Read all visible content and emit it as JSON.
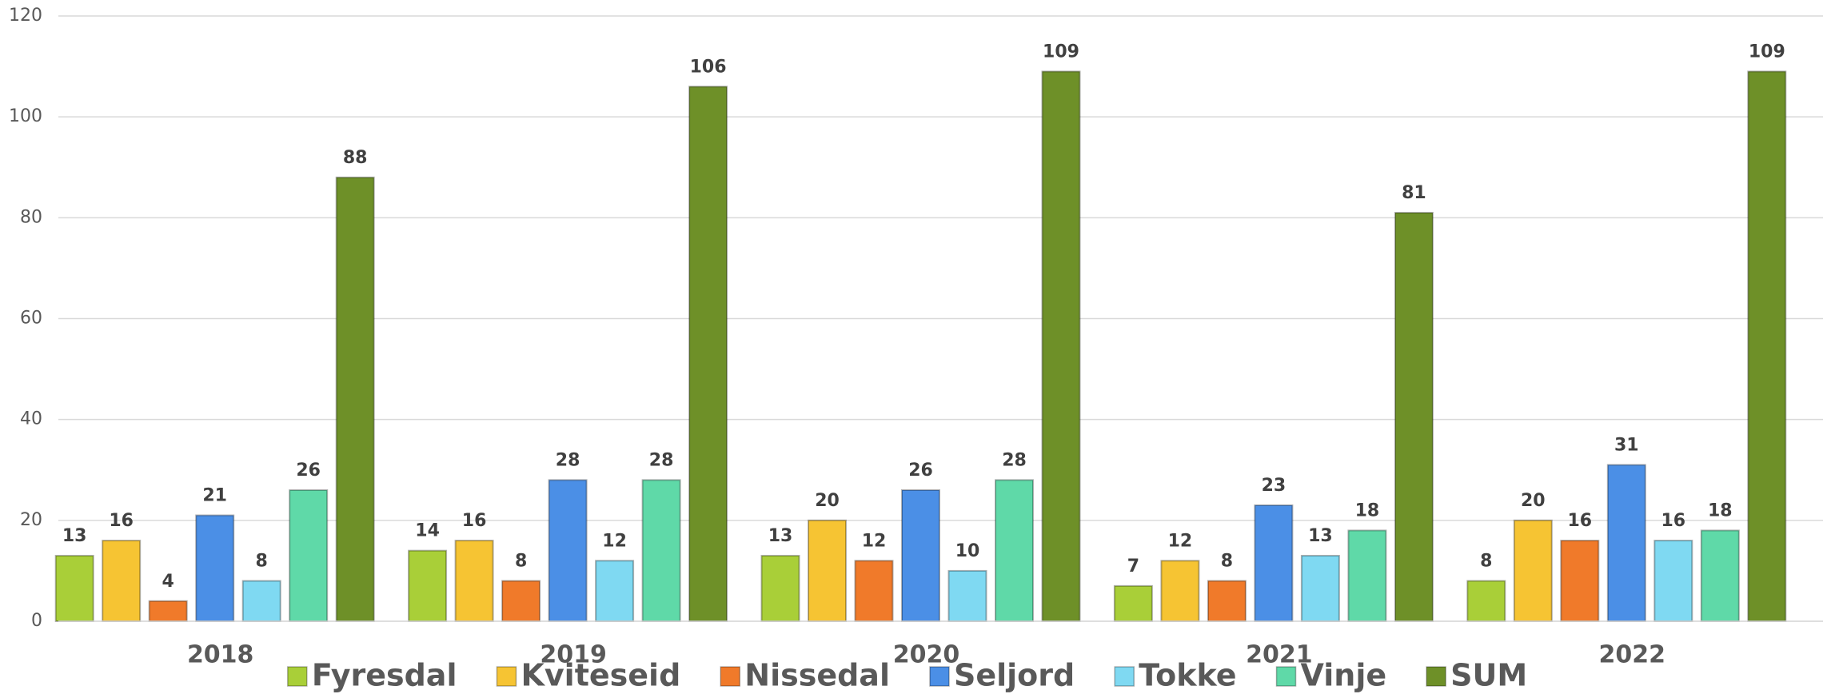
{
  "chart_data": {
    "type": "bar",
    "categories": [
      "2018",
      "2019",
      "2020",
      "2021",
      "2022"
    ],
    "series": [
      {
        "name": "Fyresdal",
        "color": "#a9cf38",
        "values": [
          13,
          14,
          13,
          7,
          8
        ]
      },
      {
        "name": "Kviteseid",
        "color": "#f6c433",
        "values": [
          16,
          16,
          20,
          12,
          20
        ]
      },
      {
        "name": "Nissedal",
        "color": "#f07a2a",
        "values": [
          4,
          8,
          12,
          8,
          16
        ]
      },
      {
        "name": "Seljord",
        "color": "#4b8fe6",
        "values": [
          21,
          28,
          26,
          23,
          31
        ]
      },
      {
        "name": "Tokke",
        "color": "#7fd9f2",
        "values": [
          8,
          12,
          10,
          13,
          16
        ]
      },
      {
        "name": "Vinje",
        "color": "#5fd9a8",
        "values": [
          26,
          28,
          28,
          18,
          18
        ]
      },
      {
        "name": "SUM",
        "color": "#6e9028",
        "values": [
          88,
          106,
          109,
          81,
          109
        ]
      }
    ],
    "ylim": [
      0,
      120
    ],
    "yticks": [
      0,
      20,
      40,
      60,
      80,
      100,
      120
    ],
    "grid": true,
    "legend": "bottom"
  }
}
